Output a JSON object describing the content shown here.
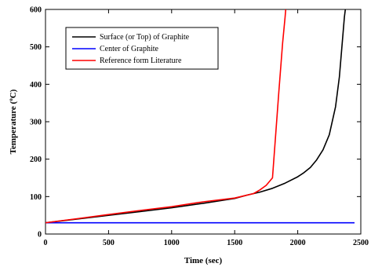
{
  "chart_data": {
    "type": "line",
    "xlabel": "Time (sec)",
    "ylabel_main": "Temperature (",
    "ylabel_sup": "o",
    "ylabel_tail": "C)",
    "xlim": [
      0,
      2500
    ],
    "ylim": [
      0,
      600
    ],
    "xticks": [
      0,
      500,
      1000,
      1500,
      2000,
      2500
    ],
    "yticks": [
      0,
      100,
      200,
      300,
      400,
      500,
      600
    ],
    "grid": false,
    "legend_position": "top-left",
    "series": [
      {
        "name": "Surface (or Top) of Graphite",
        "color": "#000000",
        "x": [
          0,
          250,
          500,
          750,
          1000,
          1250,
          1500,
          1600,
          1700,
          1800,
          1900,
          2000,
          2050,
          2100,
          2150,
          2200,
          2250,
          2300,
          2330,
          2350,
          2370,
          2385
        ],
        "y": [
          30,
          40,
          50,
          60,
          70,
          82,
          95,
          104,
          112,
          122,
          136,
          153,
          164,
          178,
          198,
          225,
          265,
          340,
          420,
          500,
          580,
          620
        ]
      },
      {
        "name": "Center of Graphite",
        "color": "#0000ff",
        "x": [
          0,
          2450
        ],
        "y": [
          30,
          30
        ]
      },
      {
        "name": "Reference form Literature",
        "color": "#ff0000",
        "x": [
          0,
          250,
          500,
          750,
          1000,
          1250,
          1500,
          1550,
          1650,
          1700,
          1750,
          1800,
          1850,
          1880,
          1900,
          1910
        ],
        "y": [
          30,
          41,
          52,
          63,
          73,
          86,
          96,
          100,
          108,
          118,
          130,
          150,
          380,
          510,
          580,
          620
        ]
      }
    ]
  }
}
